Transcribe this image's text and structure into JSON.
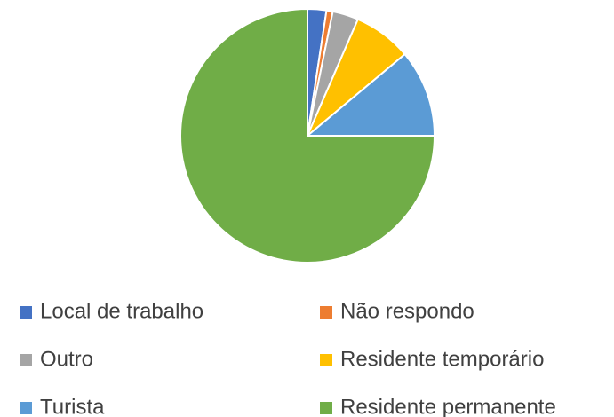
{
  "chart_data": {
    "type": "pie",
    "categories": [
      "Local de trabalho",
      "Não respondo",
      "Outro",
      "Residente temporário",
      "Turista",
      "Residente permanente"
    ],
    "values": [
      2.4,
      0.8,
      3.3,
      7.4,
      11.1,
      75
    ],
    "colors": [
      "#4472c4",
      "#ed7d31",
      "#a5a5a5",
      "#ffc000",
      "#5b9bd5",
      "#70ad47"
    ],
    "legend": "bottom"
  }
}
